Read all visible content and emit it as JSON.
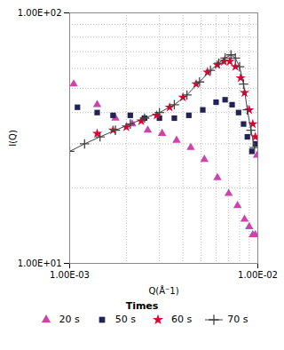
{
  "chart_data": {
    "type": "scatter",
    "xlabel": "Q(Å⁻1)",
    "ylabel": "I(Q)",
    "log": true,
    "grid": true,
    "xlim": [
      0.001,
      0.01
    ],
    "ylim": [
      10,
      100
    ],
    "xticks": [
      {
        "value": 0.001,
        "label": "1.00E-03"
      },
      {
        "value": 0.01,
        "label": "1.00E-02"
      }
    ],
    "yticks": [
      {
        "value": 10,
        "label": "1.00E+01"
      },
      {
        "value": 100,
        "label": "1.00E+02"
      }
    ],
    "legend_title": "Times",
    "series": [
      {
        "name": "20 s",
        "color": "#cc44aa",
        "marker": "triangle",
        "line_style": "none",
        "x": [
          0.00105,
          0.0014,
          0.00175,
          0.00215,
          0.0026,
          0.0031,
          0.0037,
          0.0044,
          0.0052,
          0.0061,
          0.007,
          0.0078,
          0.0085,
          0.009,
          0.0094,
          0.0097,
          0.0099
        ],
        "values": [
          52,
          43,
          38,
          36,
          34,
          33,
          31,
          29,
          26,
          22,
          19,
          17,
          15,
          14,
          13,
          13,
          27
        ]
      },
      {
        "name": "50 s",
        "color": "#222255",
        "marker": "square",
        "line_style": "none",
        "x": [
          0.0011,
          0.0014,
          0.0017,
          0.0021,
          0.0025,
          0.003,
          0.0036,
          0.0043,
          0.0051,
          0.006,
          0.0067,
          0.0073,
          0.0079,
          0.0084,
          0.0088,
          0.0093,
          0.0097
        ],
        "values": [
          42,
          40,
          39,
          39,
          38,
          38,
          38,
          39,
          41,
          44,
          45,
          43,
          40,
          36,
          32,
          28,
          30
        ]
      },
      {
        "name": "60 s",
        "color": "#dd0033",
        "marker": "star",
        "line_style": "none",
        "x": [
          0.0014,
          0.0017,
          0.002,
          0.0024,
          0.0029,
          0.0034,
          0.004,
          0.0047,
          0.0054,
          0.0061,
          0.0066,
          0.0071,
          0.0076,
          0.0081,
          0.0085,
          0.009,
          0.0094,
          0.0097
        ],
        "values": [
          33,
          34,
          35,
          37,
          39,
          42,
          46,
          52,
          58,
          62,
          64,
          64,
          61,
          55,
          48,
          41,
          36,
          32
        ]
      },
      {
        "name": "70 s",
        "color": "#444444",
        "marker": "plus",
        "line_style": "solid",
        "x": [
          0.001,
          0.0012,
          0.00145,
          0.00175,
          0.0021,
          0.0025,
          0.003,
          0.0036,
          0.0042,
          0.0049,
          0.0056,
          0.0062,
          0.0067,
          0.0072,
          0.0076,
          0.008,
          0.0084,
          0.0088,
          0.0092,
          0.0096
        ],
        "values": [
          28,
          30,
          32,
          34,
          36,
          38,
          40,
          43,
          47,
          53,
          59,
          63,
          66,
          68,
          66,
          61,
          52,
          41,
          34,
          29
        ]
      }
    ]
  }
}
